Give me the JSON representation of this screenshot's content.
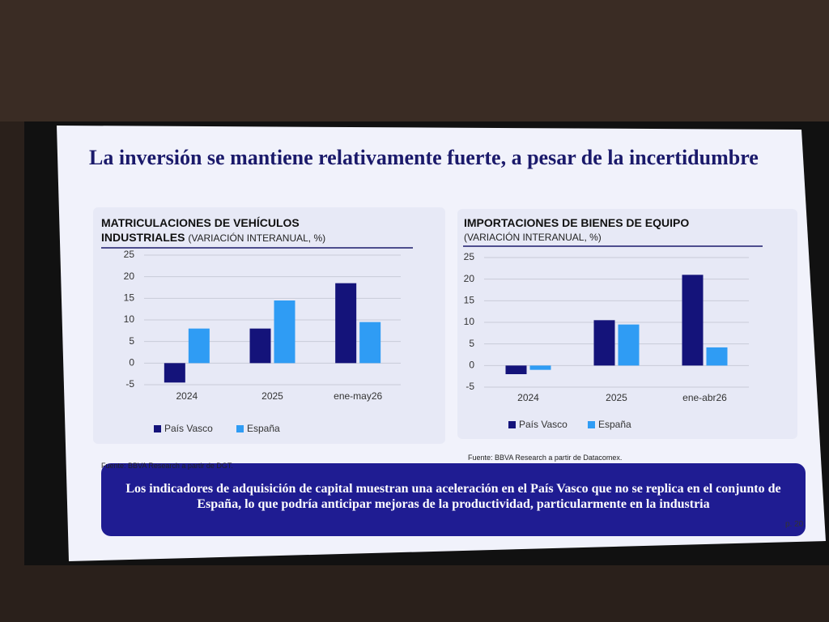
{
  "slide": {
    "title": "La inversión se mantiene relativamente fuerte, a pesar de la incertidumbre",
    "conclusion": "Los indicadores de adquisición de capital muestran una aceleración en el País Vasco que no se replica en el conjunto de España, lo que podría anticipar mejoras de la productividad, particularmente en la industria",
    "page": "p. 20"
  },
  "chart_data": [
    {
      "type": "bar",
      "title": "MATRICULACIONES DE VEHÍCULOS INDUSTRIALES",
      "subtitle": "(VARIACIÓN INTERANUAL, %)",
      "categories": [
        "2024",
        "2025",
        "ene-may26"
      ],
      "series": [
        {
          "name": "País Vasco",
          "color": "#14137a",
          "values": [
            -4.5,
            8,
            18.5
          ]
        },
        {
          "name": "España",
          "color": "#2f9cf4",
          "values": [
            8,
            14.5,
            9.5
          ]
        }
      ],
      "ylim": [
        -5,
        25
      ],
      "yticks": [
        -5,
        0,
        5,
        10,
        15,
        20,
        25
      ],
      "grid": true,
      "source": "Fuente: BBVA Research a partir de DGT."
    },
    {
      "type": "bar",
      "title": "IMPORTACIONES DE BIENES DE EQUIPO",
      "subtitle": "(VARIACIÓN INTERANUAL, %)",
      "categories": [
        "2024",
        "2025",
        "ene-abr26"
      ],
      "series": [
        {
          "name": "País Vasco",
          "color": "#14137a",
          "values": [
            -2,
            10.5,
            21
          ]
        },
        {
          "name": "España",
          "color": "#2f9cf4",
          "values": [
            -1,
            9.5,
            4.2
          ]
        }
      ],
      "ylim": [
        -5,
        25
      ],
      "yticks": [
        -5,
        0,
        5,
        10,
        15,
        20,
        25
      ],
      "grid": true,
      "source": "Fuente: BBVA Research a partir de Datacomex."
    }
  ]
}
